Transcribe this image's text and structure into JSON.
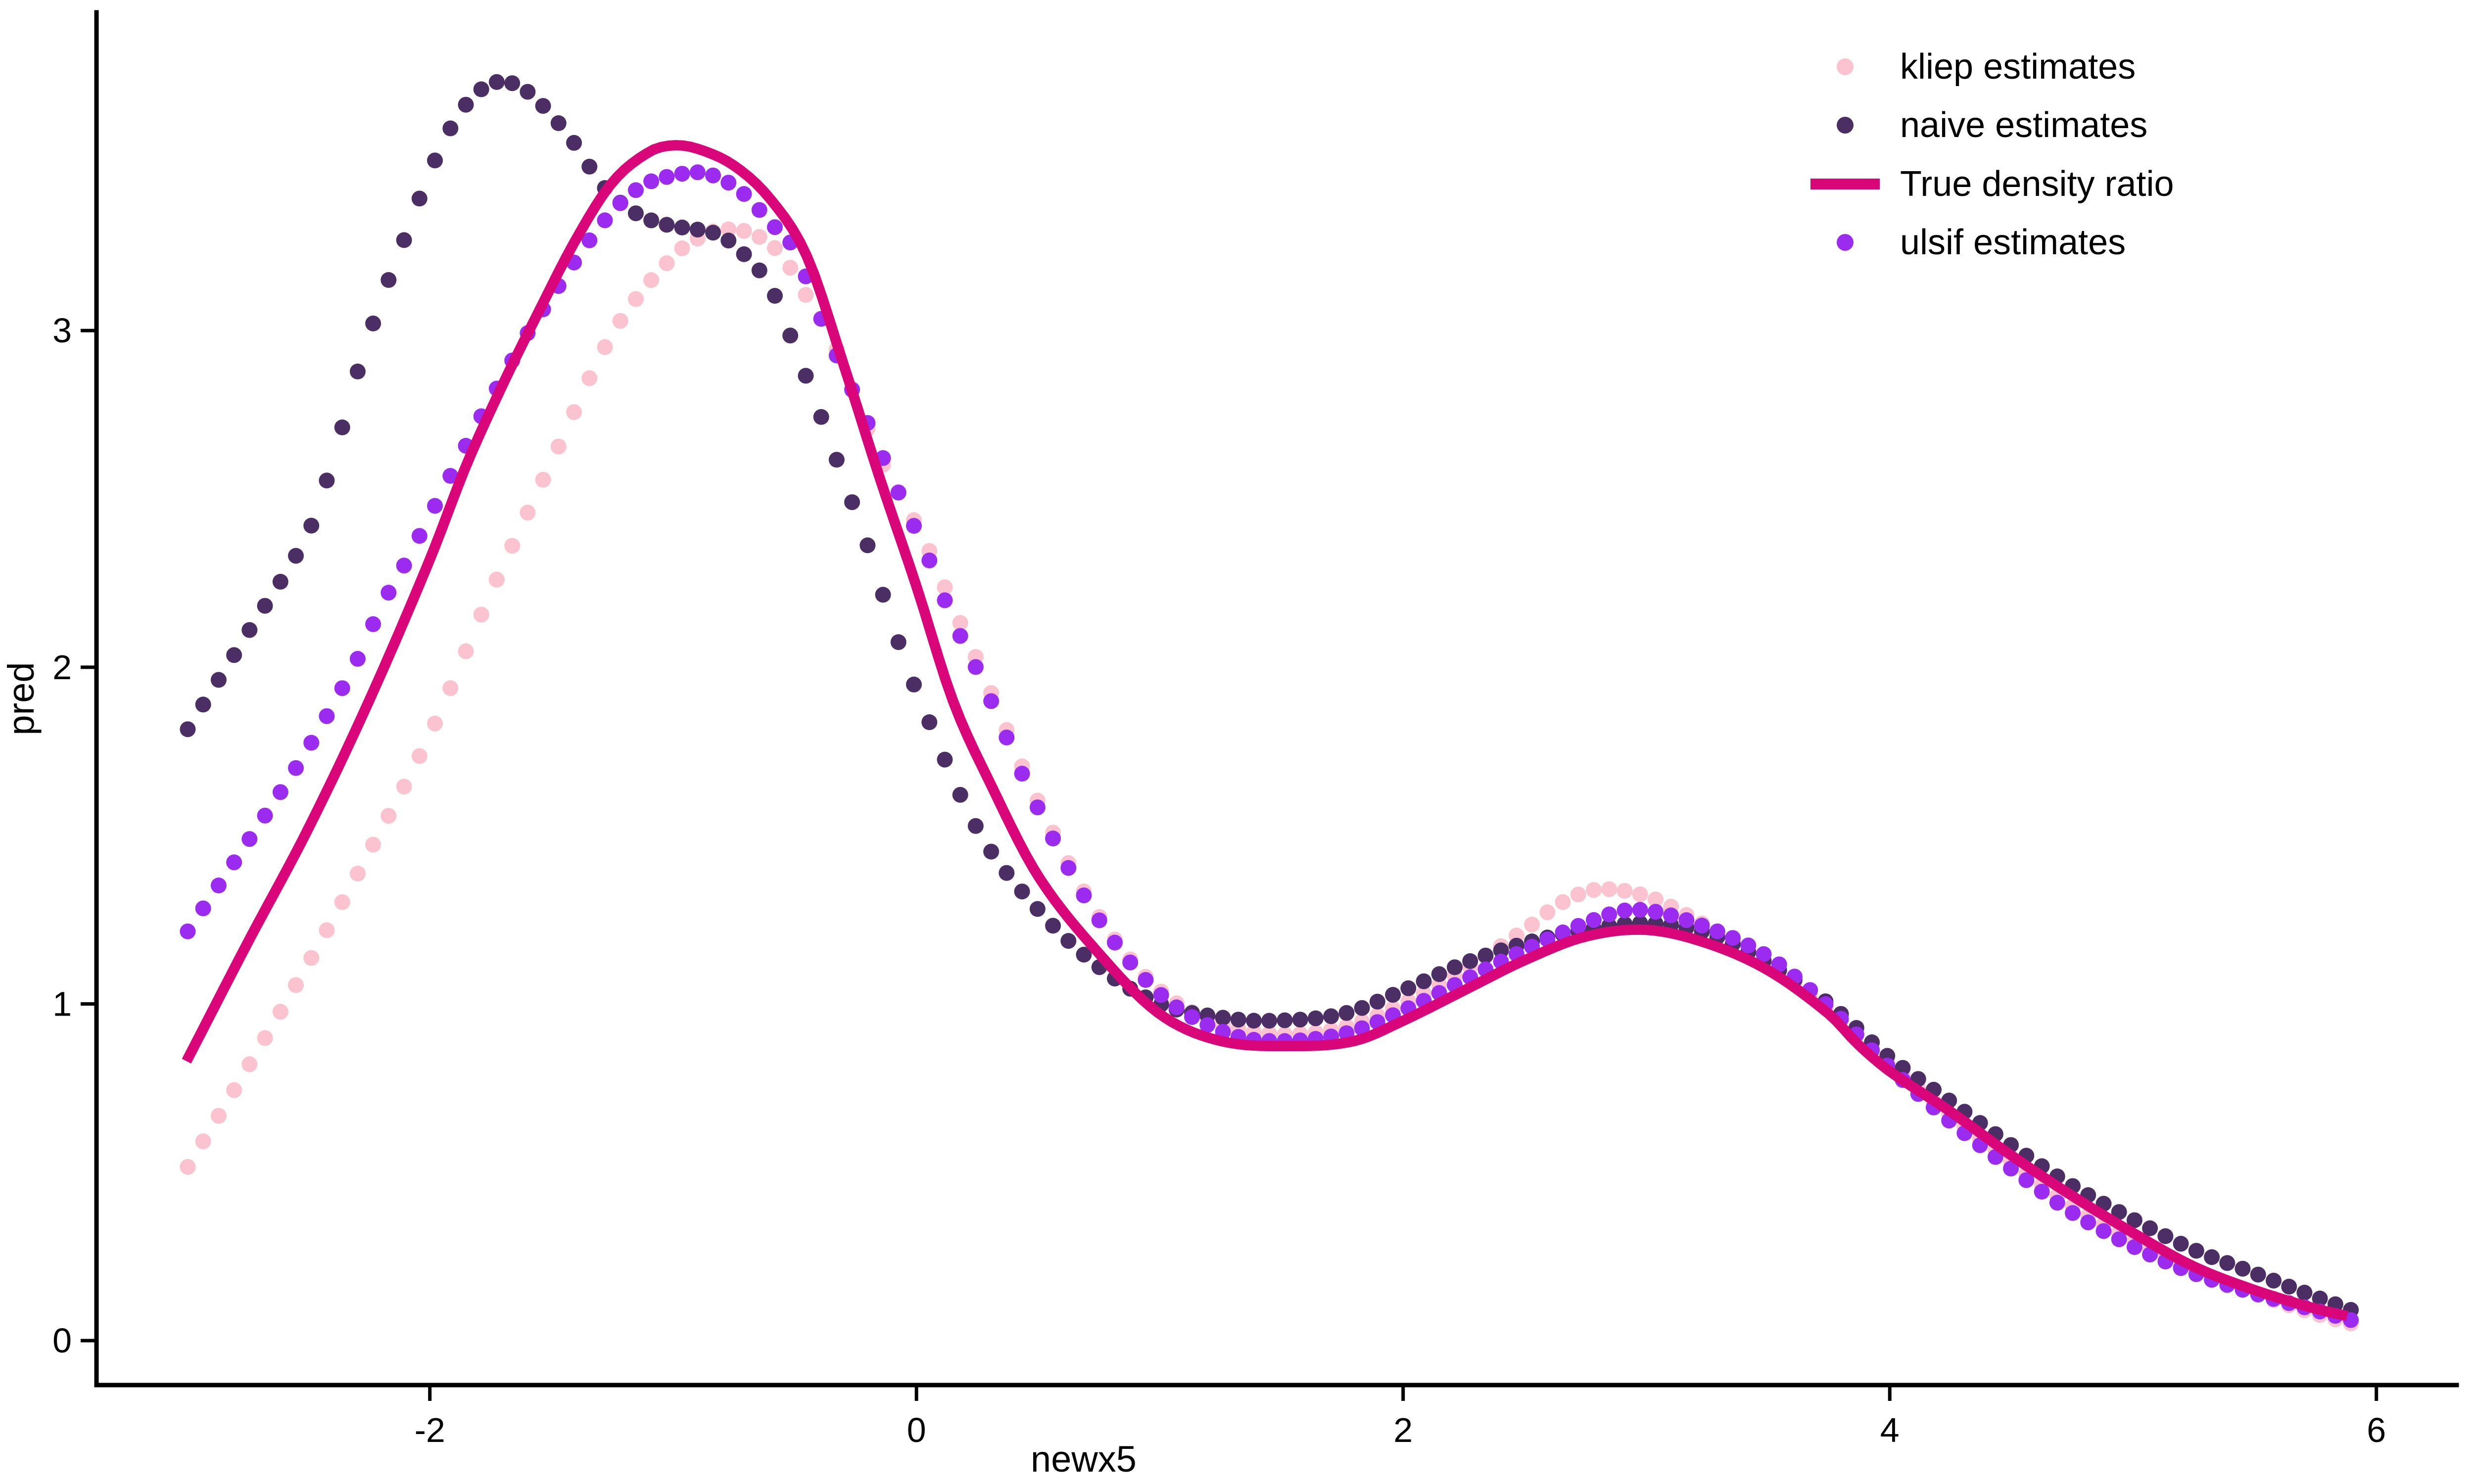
{
  "chart_data": {
    "type": "scatter",
    "subtype": "three scatter series of dense dots plus one smooth reference line (density ratio estimates)",
    "title": "",
    "xlabel": "newx5",
    "ylabel": "pred",
    "x_ticks": [
      -2,
      0,
      2,
      4,
      6
    ],
    "y_ticks": [
      0,
      1,
      2,
      3
    ],
    "xlim": [
      -3.37,
      6.33
    ],
    "ylim": [
      -0.132,
      3.945
    ],
    "grid": false,
    "background": "#ffffff",
    "axis_color": "#000000",
    "text_color": "#000000",
    "legend_position": "top-right",
    "point_x_start": -2.995,
    "point_x_end": 5.905,
    "point_x_step": 0.0635,
    "series": [
      {
        "name": "kliep estimates",
        "type": "scatter",
        "color": "#FBC2CF",
        "points": [
          [
            -3.0,
            0.51
          ],
          [
            -2.75,
            0.81
          ],
          [
            -2.5,
            1.12
          ],
          [
            -2.25,
            1.45
          ],
          [
            -2.0,
            1.8
          ],
          [
            -1.75,
            2.22
          ],
          [
            -1.5,
            2.61
          ],
          [
            -1.25,
            2.99
          ],
          [
            -1.0,
            3.22
          ],
          [
            -0.85,
            3.29
          ],
          [
            -0.75,
            3.3
          ],
          [
            -0.65,
            3.28
          ],
          [
            -0.55,
            3.22
          ],
          [
            -0.45,
            3.1
          ],
          [
            -0.35,
            2.98
          ],
          [
            -0.25,
            2.8
          ],
          [
            -0.15,
            2.62
          ],
          [
            -0.05,
            2.49
          ],
          [
            0.05,
            2.35
          ],
          [
            0.15,
            2.18
          ],
          [
            0.25,
            2.02
          ],
          [
            0.5,
            1.6
          ],
          [
            0.75,
            1.26
          ],
          [
            1.0,
            1.04
          ],
          [
            1.25,
            0.94
          ],
          [
            1.5,
            0.91
          ],
          [
            1.75,
            0.93
          ],
          [
            2.0,
            1.0
          ],
          [
            2.25,
            1.1
          ],
          [
            2.5,
            1.22
          ],
          [
            2.65,
            1.3
          ],
          [
            2.8,
            1.34
          ],
          [
            3.0,
            1.32
          ],
          [
            3.2,
            1.25
          ],
          [
            3.5,
            1.12
          ],
          [
            3.75,
            0.98
          ],
          [
            4.0,
            0.82
          ],
          [
            4.25,
            0.67
          ],
          [
            4.5,
            0.53
          ],
          [
            4.75,
            0.4
          ],
          [
            5.0,
            0.3
          ],
          [
            5.25,
            0.21
          ],
          [
            5.5,
            0.14
          ],
          [
            5.75,
            0.08
          ],
          [
            5.9,
            0.05
          ]
        ]
      },
      {
        "name": "naive estimates",
        "type": "scatter",
        "color": "#4B2E63",
        "points": [
          [
            -3.0,
            1.81
          ],
          [
            -2.75,
            2.1
          ],
          [
            -2.5,
            2.4
          ],
          [
            -2.4,
            2.61
          ],
          [
            -2.3,
            2.87
          ],
          [
            -2.2,
            3.09
          ],
          [
            -2.1,
            3.28
          ],
          [
            -2.0,
            3.47
          ],
          [
            -1.9,
            3.62
          ],
          [
            -1.8,
            3.71
          ],
          [
            -1.7,
            3.74
          ],
          [
            -1.6,
            3.71
          ],
          [
            -1.5,
            3.64
          ],
          [
            -1.4,
            3.55
          ],
          [
            -1.3,
            3.44
          ],
          [
            -1.2,
            3.37
          ],
          [
            -1.1,
            3.33
          ],
          [
            -1.0,
            3.31
          ],
          [
            -0.9,
            3.3
          ],
          [
            -0.8,
            3.28
          ],
          [
            -0.7,
            3.22
          ],
          [
            -0.6,
            3.13
          ],
          [
            -0.5,
            2.95
          ],
          [
            -0.4,
            2.76
          ],
          [
            -0.3,
            2.56
          ],
          [
            -0.2,
            2.36
          ],
          [
            -0.1,
            2.13
          ],
          [
            0.0,
            1.93
          ],
          [
            0.25,
            1.52
          ],
          [
            0.5,
            1.28
          ],
          [
            0.75,
            1.11
          ],
          [
            1.0,
            1.0
          ],
          [
            1.25,
            0.96
          ],
          [
            1.45,
            0.95
          ],
          [
            1.75,
            0.97
          ],
          [
            2.0,
            1.04
          ],
          [
            2.25,
            1.12
          ],
          [
            2.5,
            1.18
          ],
          [
            2.75,
            1.22
          ],
          [
            3.0,
            1.24
          ],
          [
            3.25,
            1.21
          ],
          [
            3.5,
            1.12
          ],
          [
            3.75,
            1.0
          ],
          [
            4.0,
            0.84
          ],
          [
            4.25,
            0.71
          ],
          [
            4.5,
            0.58
          ],
          [
            4.75,
            0.46
          ],
          [
            5.0,
            0.36
          ],
          [
            5.25,
            0.27
          ],
          [
            5.5,
            0.2
          ],
          [
            5.75,
            0.13
          ],
          [
            5.9,
            0.09
          ]
        ]
      },
      {
        "name": "ulsif estimates",
        "type": "scatter",
        "color": "#9C2BF0",
        "points": [
          [
            -3.0,
            1.21
          ],
          [
            -2.75,
            1.48
          ],
          [
            -2.5,
            1.76
          ],
          [
            -2.3,
            2.02
          ],
          [
            -2.2,
            2.18
          ],
          [
            -2.1,
            2.31
          ],
          [
            -2.0,
            2.45
          ],
          [
            -1.9,
            2.59
          ],
          [
            -1.8,
            2.73
          ],
          [
            -1.7,
            2.86
          ],
          [
            -1.6,
            2.99
          ],
          [
            -1.5,
            3.1
          ],
          [
            -1.4,
            3.21
          ],
          [
            -1.3,
            3.31
          ],
          [
            -1.2,
            3.39
          ],
          [
            -1.1,
            3.44
          ],
          [
            -1.0,
            3.46
          ],
          [
            -0.9,
            3.47
          ],
          [
            -0.8,
            3.45
          ],
          [
            -0.7,
            3.4
          ],
          [
            -0.6,
            3.32
          ],
          [
            -0.5,
            3.24
          ],
          [
            -0.4,
            3.05
          ],
          [
            -0.3,
            2.88
          ],
          [
            -0.21,
            2.74
          ],
          [
            -0.1,
            2.56
          ],
          [
            -0.03,
            2.45
          ],
          [
            0.04,
            2.34
          ],
          [
            0.15,
            2.14
          ],
          [
            0.27,
            1.96
          ],
          [
            0.5,
            1.58
          ],
          [
            0.75,
            1.25
          ],
          [
            1.0,
            1.03
          ],
          [
            1.25,
            0.92
          ],
          [
            1.45,
            0.89
          ],
          [
            1.75,
            0.91
          ],
          [
            2.0,
            0.98
          ],
          [
            2.25,
            1.07
          ],
          [
            2.5,
            1.16
          ],
          [
            2.75,
            1.24
          ],
          [
            2.95,
            1.28
          ],
          [
            3.2,
            1.24
          ],
          [
            3.5,
            1.14
          ],
          [
            3.75,
            0.99
          ],
          [
            4.0,
            0.81
          ],
          [
            4.25,
            0.65
          ],
          [
            4.5,
            0.51
          ],
          [
            4.75,
            0.38
          ],
          [
            5.0,
            0.28
          ],
          [
            5.25,
            0.2
          ],
          [
            5.5,
            0.14
          ],
          [
            5.75,
            0.09
          ],
          [
            5.9,
            0.06
          ]
        ]
      },
      {
        "name": "True density ratio",
        "type": "line",
        "color": "#D9067A",
        "points": [
          [
            -3.0,
            0.83
          ],
          [
            -2.75,
            1.18
          ],
          [
            -2.5,
            1.52
          ],
          [
            -2.25,
            1.9
          ],
          [
            -2.0,
            2.32
          ],
          [
            -1.85,
            2.6
          ],
          [
            -1.7,
            2.84
          ],
          [
            -1.55,
            3.06
          ],
          [
            -1.4,
            3.27
          ],
          [
            -1.25,
            3.44
          ],
          [
            -1.1,
            3.53
          ],
          [
            -1.0,
            3.55
          ],
          [
            -0.9,
            3.54
          ],
          [
            -0.75,
            3.49
          ],
          [
            -0.6,
            3.39
          ],
          [
            -0.45,
            3.22
          ],
          [
            -0.3,
            2.9
          ],
          [
            -0.15,
            2.56
          ],
          [
            0.0,
            2.24
          ],
          [
            0.15,
            1.9
          ],
          [
            0.3,
            1.66
          ],
          [
            0.5,
            1.38
          ],
          [
            0.75,
            1.15
          ],
          [
            1.0,
            0.97
          ],
          [
            1.25,
            0.89
          ],
          [
            1.55,
            0.875
          ],
          [
            1.8,
            0.89
          ],
          [
            2.0,
            0.95
          ],
          [
            2.25,
            1.04
          ],
          [
            2.5,
            1.13
          ],
          [
            2.75,
            1.2
          ],
          [
            3.0,
            1.22
          ],
          [
            3.25,
            1.18
          ],
          [
            3.5,
            1.1
          ],
          [
            3.75,
            0.97
          ],
          [
            3.87,
            0.88
          ],
          [
            4.0,
            0.8
          ],
          [
            4.25,
            0.68
          ],
          [
            4.5,
            0.55
          ],
          [
            4.75,
            0.43
          ],
          [
            5.0,
            0.32
          ],
          [
            5.25,
            0.22
          ],
          [
            5.5,
            0.15
          ],
          [
            5.75,
            0.095
          ],
          [
            5.9,
            0.07
          ]
        ]
      }
    ],
    "legend_entries": [
      {
        "label": "kliep estimates",
        "marker": "dot",
        "color": "#FBC2CF"
      },
      {
        "label": "naive estimates",
        "marker": "dot",
        "color": "#4B2E63"
      },
      {
        "label": "True density ratio",
        "marker": "line",
        "color": "#D9067A"
      },
      {
        "label": "ulsif estimates",
        "marker": "dot",
        "color": "#9C2BF0"
      }
    ]
  }
}
